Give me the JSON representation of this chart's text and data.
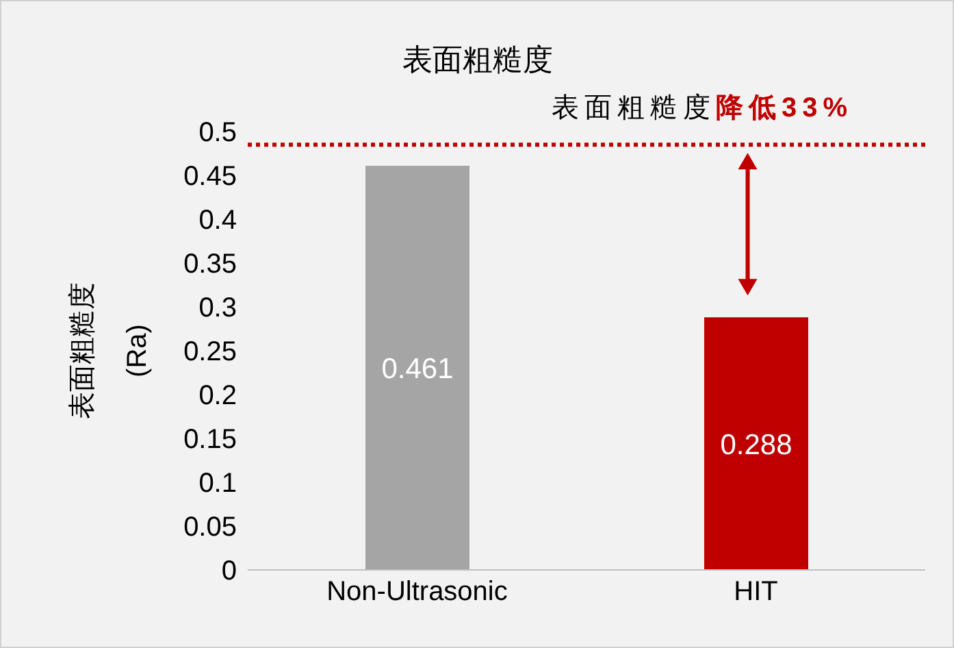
{
  "chart_data": {
    "type": "bar",
    "title": "表面粗糙度",
    "ylabel": "表面粗糙度 (Ra)",
    "categories": [
      "Non-Ultrasonic",
      "HIT"
    ],
    "values": [
      0.461,
      0.288
    ],
    "colors": [
      "#a5a5a5",
      "#c00000"
    ],
    "ylim": [
      0,
      0.5
    ],
    "yticks": [
      0,
      0.05,
      0.1,
      0.15,
      0.2,
      0.25,
      0.3,
      0.35,
      0.4,
      0.45,
      0.5
    ],
    "grid": false,
    "data_labels": true,
    "ref_lines": [
      {
        "axis": "y",
        "value": 0.485,
        "color": "#c00000",
        "line_style": "dotted"
      }
    ],
    "annotations": [
      "表面粗糙度",
      "降低33%"
    ]
  }
}
